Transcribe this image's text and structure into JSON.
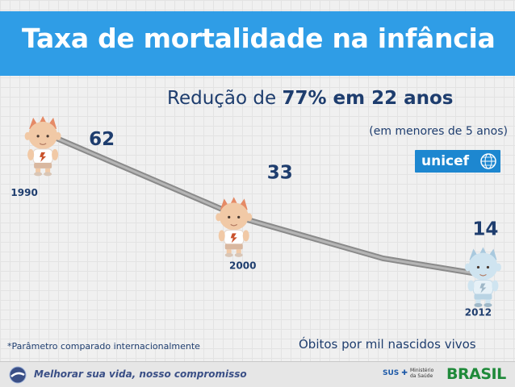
{
  "title": "Taxa de mortalidade na infância",
  "headline": {
    "prefix": "Redução de ",
    "highlight": "77% em 22 anos"
  },
  "subhead": "(em menores de 5 anos)",
  "unicef_logo_text": "unicef",
  "footnote": "*Parâmetro comparado internacionalmente",
  "bottom_bar": {
    "slogan": "Melhorar sua vida, nosso compromisso",
    "sus_text": "SUS",
    "ministry_text": "Ministério da Saúde",
    "brasil_text": "BRASIL"
  },
  "colors": {
    "title_bar": "#2f9de6",
    "text_dark": "#1e3d6e",
    "line": "#8a8a8a",
    "child_skin": "#f1c9a6",
    "child_hair": "#e58a66",
    "child_faded": "#cfe4f0"
  },
  "chart_data": {
    "type": "line",
    "title": "Taxa de mortalidade na infância",
    "ylabel": "Óbitos por mil nascidos vivos",
    "xlabel": "",
    "x": [
      1990,
      2000,
      2012
    ],
    "values": [
      62,
      33,
      14
    ],
    "ylim": [
      0,
      70
    ],
    "grid": true,
    "legend": "none",
    "point_labels": [
      "62",
      "33",
      "14"
    ],
    "x_labels": [
      "1990",
      "2000",
      "2012"
    ]
  }
}
